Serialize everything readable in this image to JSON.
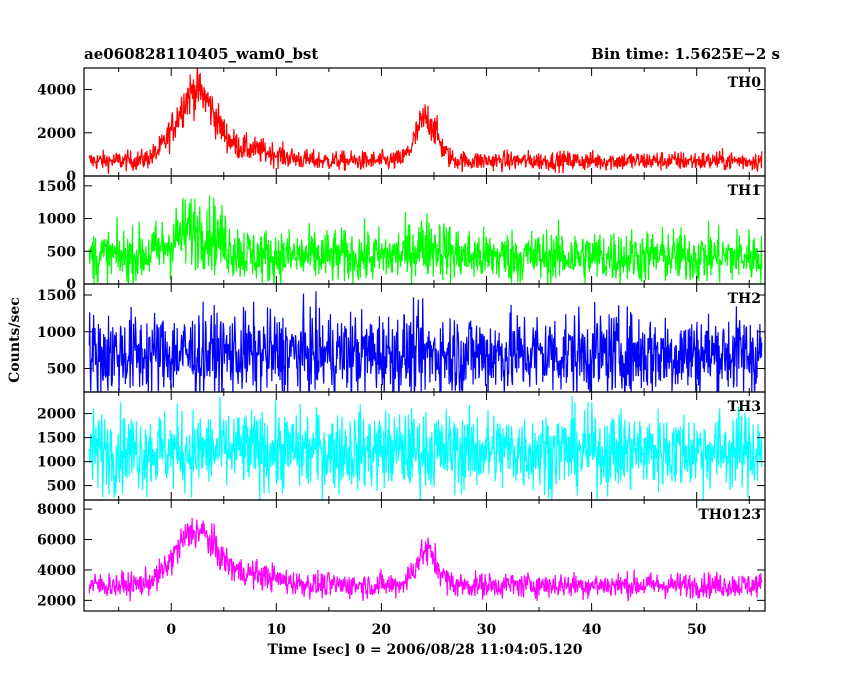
{
  "header": {
    "left_title": "ae060828110405_wam0_bst",
    "right_title": "Bin time: 1.5625E−2 s"
  },
  "colors": {
    "TH0": "#ff0000",
    "TH1": "#00ff00",
    "TH2": "#0000ff",
    "TH3": "#00ffff",
    "TH0123": "#ff00ff",
    "frame": "#000000",
    "background": "#ffffff"
  },
  "chart_data": {
    "type": "line",
    "title": "ae060828110405_wam0_bst",
    "subtitle": "Bin time: 1.5625E−2 s",
    "xlabel": "Time [sec] 0 = 2006/08/28 11:04:05.120",
    "ylabel": "Counts/sec",
    "xlim": [
      -8.3,
      56.5
    ],
    "x_ticks": [
      0,
      10,
      20,
      30,
      40,
      50
    ],
    "x_range_data": [
      -7.8,
      56.2
    ],
    "grid": false,
    "panels": [
      {
        "name": "TH0",
        "color": "#ff0000",
        "ylim": [
          0,
          5000
        ],
        "y_ticks": [
          0,
          2000,
          4000
        ],
        "baseline": 700,
        "noise": 230,
        "peaks": [
          {
            "t": 2.3,
            "width": 1.8,
            "amp": 3200
          },
          {
            "t": 7.5,
            "width": 2.5,
            "amp": 500
          },
          {
            "t": 24.3,
            "width": 1.0,
            "amp": 1950
          }
        ]
      },
      {
        "name": "TH1",
        "color": "#00ff00",
        "ylim": [
          0,
          1650
        ],
        "y_ticks": [
          0,
          500,
          1000,
          1500
        ],
        "baseline": 420,
        "noise": 210,
        "peaks": [
          {
            "t": 2.5,
            "width": 2.2,
            "amp": 420
          },
          {
            "t": 24.5,
            "width": 1.5,
            "amp": 170
          }
        ]
      },
      {
        "name": "TH2",
        "color": "#0000ff",
        "ylim": [
          180,
          1650
        ],
        "y_ticks": [
          500,
          1000,
          1500
        ],
        "baseline": 700,
        "noise": 290,
        "peaks": []
      },
      {
        "name": "TH3",
        "color": "#00ffff",
        "ylim": [
          200,
          2450
        ],
        "y_ticks": [
          500,
          1000,
          1500,
          2000
        ],
        "baseline": 1230,
        "noise": 420,
        "peaks": []
      },
      {
        "name": "TH0123",
        "color": "#ff00ff",
        "ylim": [
          1300,
          8600
        ],
        "y_ticks": [
          2000,
          4000,
          6000,
          8000
        ],
        "baseline": 3000,
        "noise": 420,
        "peaks": [
          {
            "t": 2.3,
            "width": 1.9,
            "amp": 3500
          },
          {
            "t": 7.5,
            "width": 2.5,
            "amp": 700
          },
          {
            "t": 24.3,
            "width": 1.0,
            "amp": 2250
          }
        ]
      }
    ]
  }
}
